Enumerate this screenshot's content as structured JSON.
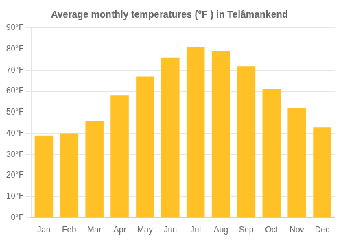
{
  "chart_data": {
    "type": "bar",
    "title": "Average monthly temperatures (°F ) in Telâ​mankend",
    "categories": [
      "Jan",
      "Feb",
      "Mar",
      "Apr",
      "May",
      "Jun",
      "Jul",
      "Aug",
      "Sep",
      "Oct",
      "Nov",
      "Dec"
    ],
    "values": [
      39,
      40,
      46,
      58,
      67,
      76,
      81,
      79,
      72,
      61,
      52,
      43
    ],
    "color": "#FFC125",
    "ylim": [
      0,
      90
    ],
    "yticks": [
      {
        "value": 0,
        "label": "0°F"
      },
      {
        "value": 10,
        "label": "10°F"
      },
      {
        "value": 20,
        "label": "20°F"
      },
      {
        "value": 30,
        "label": "30°F"
      },
      {
        "value": 40,
        "label": "40°F"
      },
      {
        "value": 50,
        "label": "50°F"
      },
      {
        "value": 60,
        "label": "60°F"
      },
      {
        "value": 70,
        "label": "70°F"
      },
      {
        "value": 80,
        "label": "80°F"
      },
      {
        "value": 90,
        "label": "90°F"
      }
    ],
    "grid": true
  }
}
